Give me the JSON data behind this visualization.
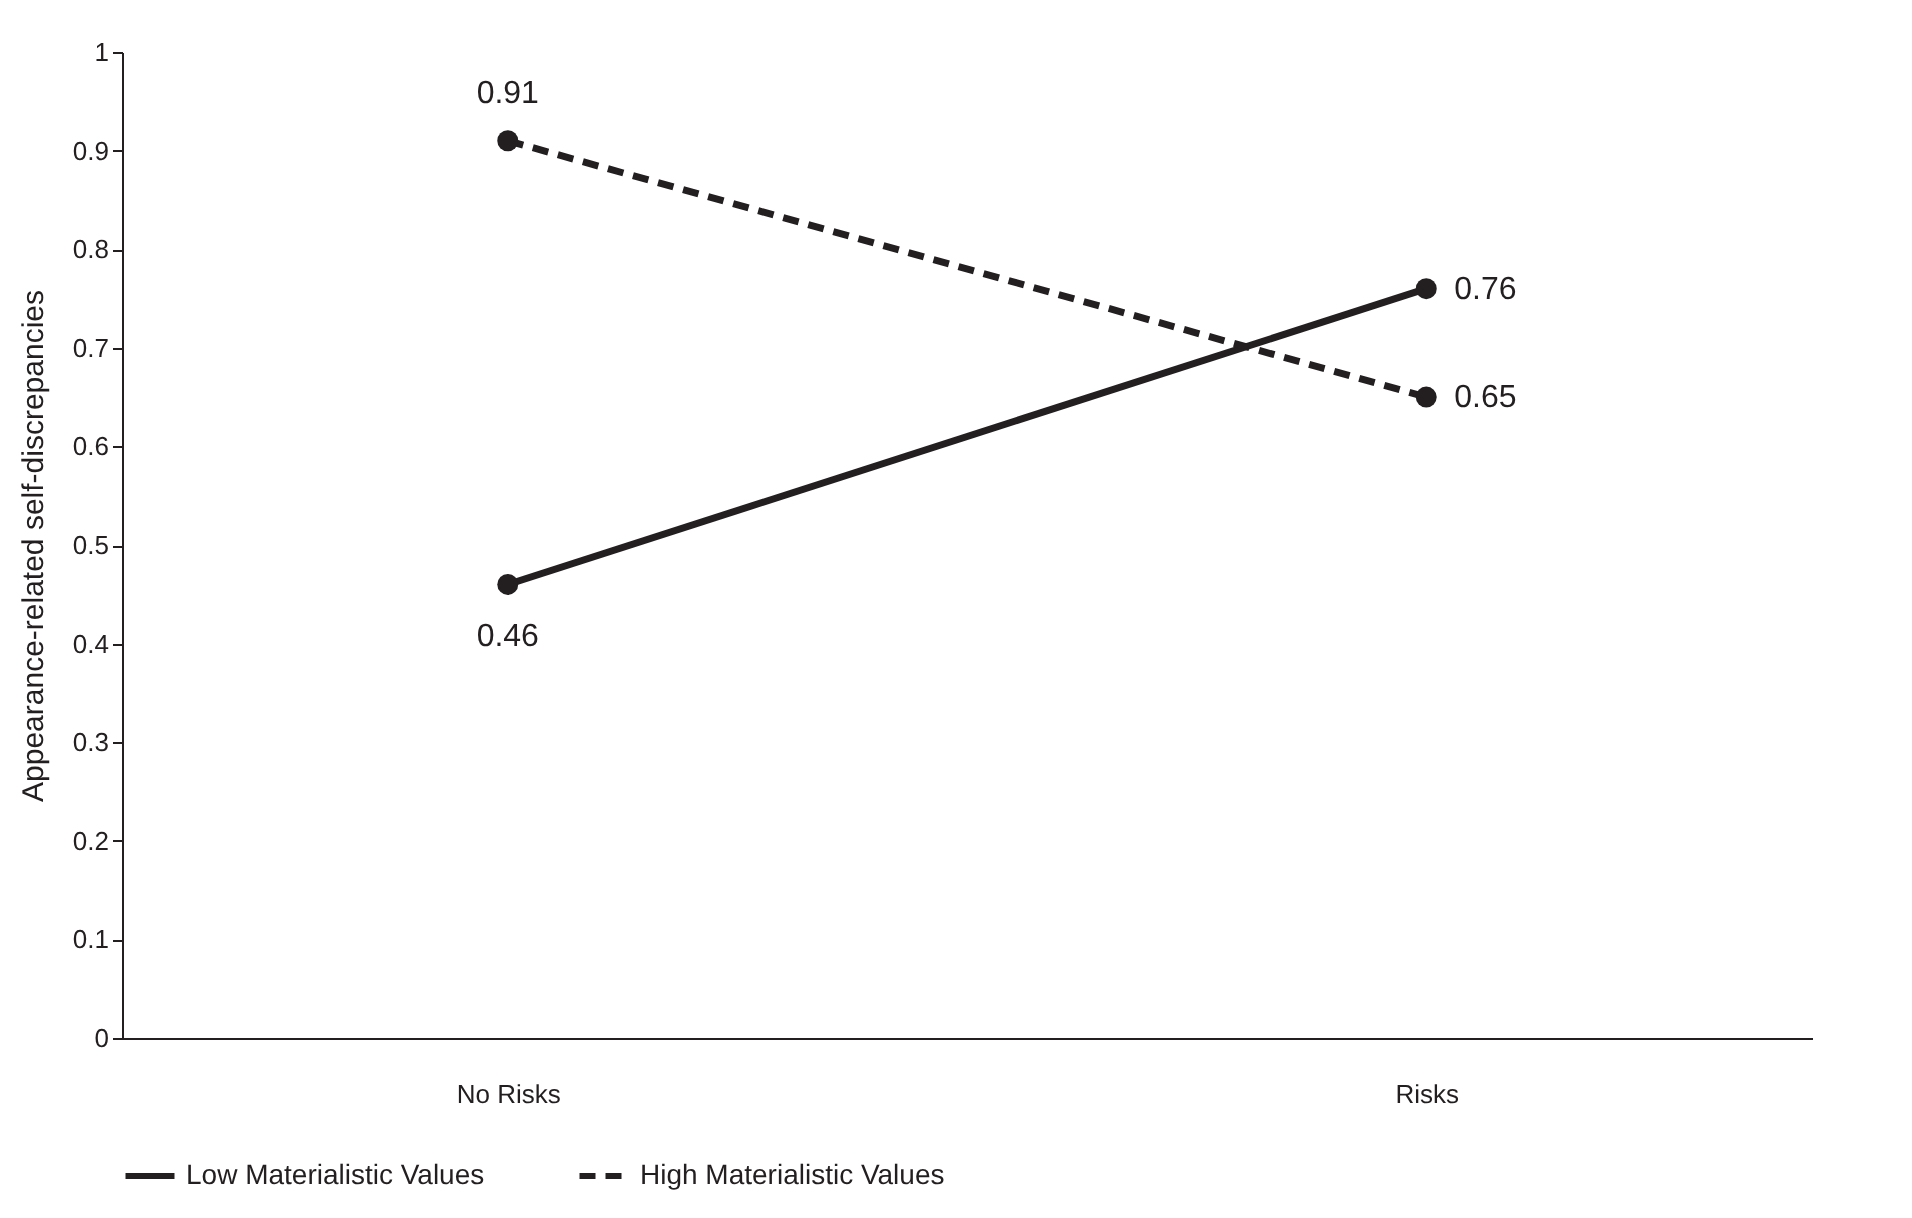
{
  "chart_data": {
    "type": "line",
    "ylabel": "Appearance-related self-discrepancies",
    "categories": [
      "No Risks",
      "Risks"
    ],
    "series": [
      {
        "name": "Low Materialistic Values",
        "color": "#231f20",
        "values": [
          0.46,
          0.76
        ],
        "line_style": "solid"
      },
      {
        "name": "High Materialistic Values",
        "color": "#231f20",
        "values": [
          0.91,
          0.65
        ],
        "line_style": "dashed"
      }
    ],
    "ylim": [
      0,
      1
    ],
    "yticks": [
      {
        "value": 0,
        "label": "0"
      },
      0.1,
      0.2,
      0.3,
      0.4,
      0.5,
      0.6,
      0.7,
      0.8,
      0.9,
      {
        "value": 1,
        "label": "1"
      }
    ],
    "grid": false,
    "legend": "bottom",
    "marker": "circle",
    "data_labels": true
  }
}
